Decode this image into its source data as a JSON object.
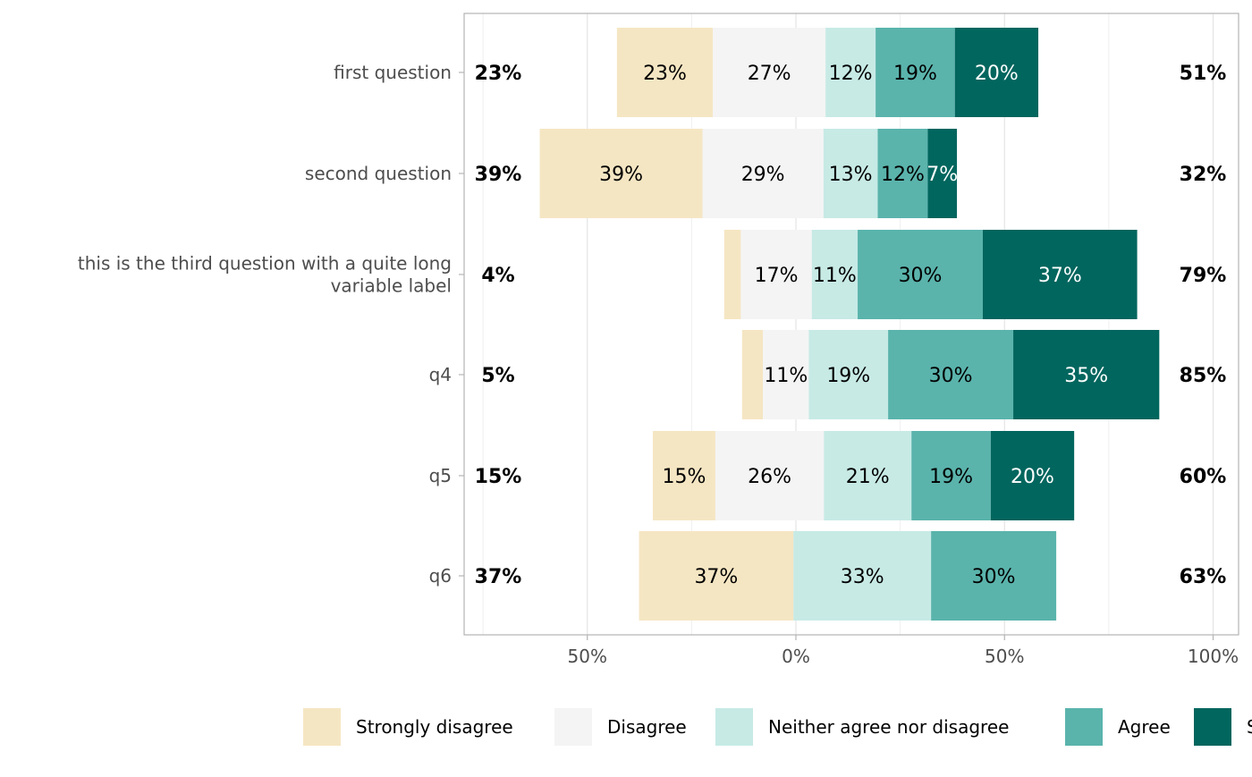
{
  "chart_data": {
    "type": "bar",
    "orientation": "horizontal",
    "stacked": "diverging",
    "title": "",
    "xlabel": "",
    "ylabel": "",
    "xlim": [
      -80,
      106
    ],
    "x_ticks": [
      -50,
      0,
      50,
      100
    ],
    "x_tick_labels": [
      "50%",
      "0%",
      "50%",
      "100%"
    ],
    "grid": true,
    "legend_position": "bottom",
    "levels": [
      "Strongly disagree",
      "Disagree",
      "Neither agree nor disagree",
      "Agree",
      "Strongly agree"
    ],
    "colors": [
      "#F5E6C3",
      "#F4F4F4",
      "#C7EAE5",
      "#5AB4AC",
      "#01665E"
    ],
    "label_colors": [
      "#000000",
      "#000000",
      "#000000",
      "#000000",
      "#FFFFFF"
    ],
    "categories": [
      "first question",
      "second question",
      "this is the third question with a quite long\nvariable label",
      "q4",
      "q5",
      "q6"
    ],
    "bar_start": [
      -42.9,
      -61.4,
      -17.2,
      -12.9,
      -34.3,
      -37.6
    ],
    "values": [
      [
        23,
        27,
        12,
        19,
        20
      ],
      [
        39,
        29,
        13,
        12,
        7
      ],
      [
        4,
        17,
        11,
        30,
        37
      ],
      [
        5,
        11,
        19,
        30,
        35
      ],
      [
        15,
        26,
        21,
        19,
        20
      ],
      [
        37,
        0,
        33,
        30,
        0
      ]
    ],
    "left_totals": [
      "23%",
      "39%",
      "4%",
      "5%",
      "15%",
      "37%"
    ],
    "right_totals": [
      "51%",
      "32%",
      "79%",
      "85%",
      "60%",
      "63%"
    ]
  }
}
